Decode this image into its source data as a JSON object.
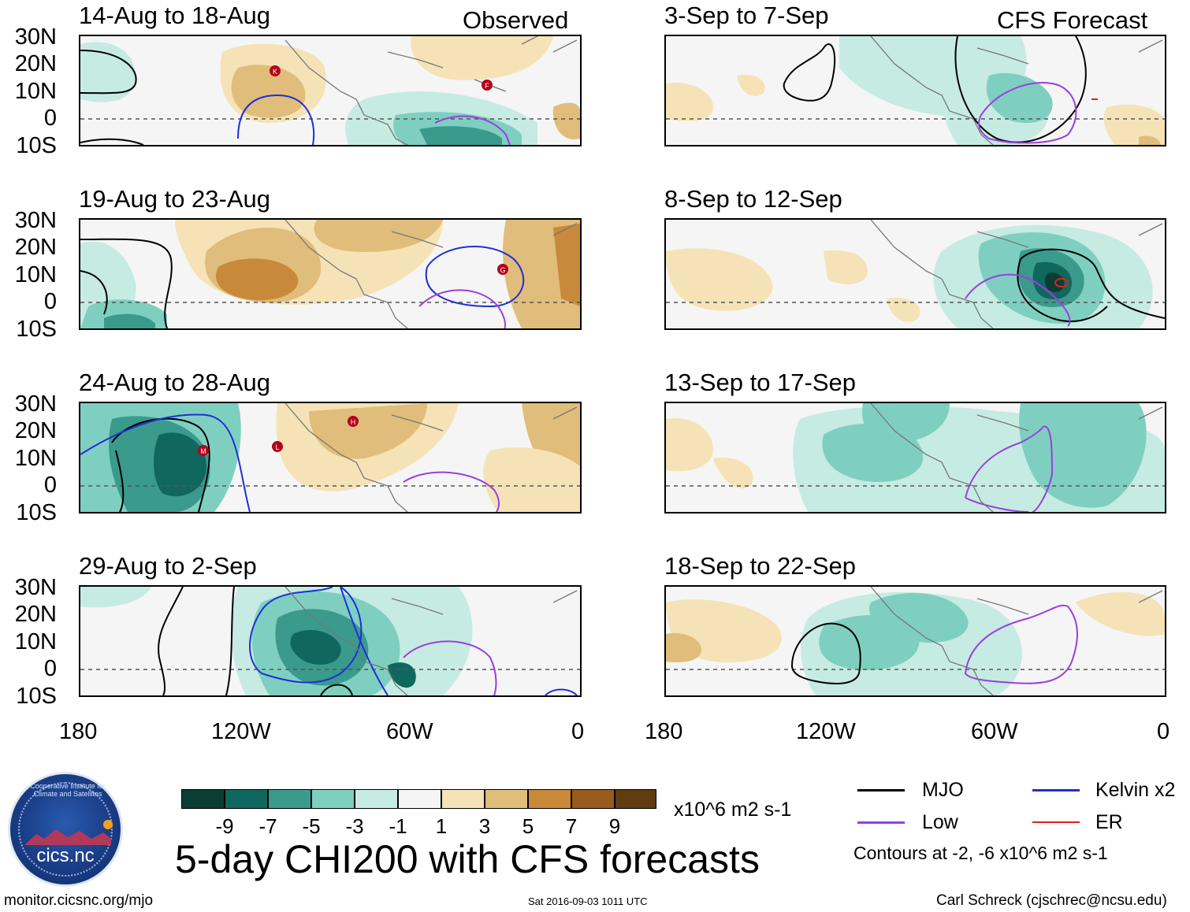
{
  "panels": [
    {
      "id": "p1",
      "title": "14-Aug to 18-Aug",
      "tag": "Observed"
    },
    {
      "id": "p2",
      "title": "19-Aug to 23-Aug"
    },
    {
      "id": "p3",
      "title": "24-Aug to 28-Aug"
    },
    {
      "id": "p4",
      "title": "29-Aug to 2-Sep"
    },
    {
      "id": "p5",
      "title": "3-Sep to 7-Sep",
      "tag": "CFS Forecast"
    },
    {
      "id": "p6",
      "title": "8-Sep to 12-Sep"
    },
    {
      "id": "p7",
      "title": "13-Sep to 17-Sep"
    },
    {
      "id": "p8",
      "title": "18-Sep to 22-Sep"
    }
  ],
  "lat_labels": [
    "30N",
    "20N",
    "10N",
    "0",
    "10S"
  ],
  "lon_labels": [
    "180",
    "120W",
    "60W",
    "0"
  ],
  "colorbar": {
    "colors": [
      "#0b3d33",
      "#10675d",
      "#3a9a8c",
      "#7fcfc0",
      "#c6ebe2",
      "#f5f5f5",
      "#f5e3b7",
      "#e0bd7a",
      "#c88a3a",
      "#985a1d",
      "#603c10"
    ],
    "labels": [
      "-9",
      "-7",
      "-5",
      "-3",
      "-1",
      "1",
      "3",
      "5",
      "7",
      "9"
    ],
    "units": "x10^6 m2 s-1"
  },
  "main_title": "5-day CHI200 with CFS forecasts",
  "legend": {
    "items": [
      {
        "label": "MJO",
        "color": "#000000"
      },
      {
        "label": "Kelvin x2",
        "color": "#1f2fd8"
      },
      {
        "label": "Low",
        "color": "#9b3ee0"
      },
      {
        "label": "ER",
        "color": "#e02020"
      }
    ],
    "note": "Contours at -2, -6 x10^6 m2 s-1"
  },
  "footer": {
    "url": "monitor.cicsnc.org/mjo",
    "timestamp": "Sat 2016-09-03 1011 UTC",
    "author": "Carl Schreck (cjschrec@ncsu.edu)"
  },
  "logo": {
    "text": "cics.nc",
    "arc_text": "Cooperative Institute for Climate and Satellites"
  },
  "storms": [
    {
      "panel": "p1",
      "letter": "K"
    },
    {
      "panel": "p1",
      "letter": "F"
    },
    {
      "panel": "p2",
      "letter": "G"
    },
    {
      "panel": "p3",
      "letter": "M"
    },
    {
      "panel": "p3",
      "letter": "L"
    },
    {
      "panel": "p3",
      "letter": "H"
    }
  ]
}
